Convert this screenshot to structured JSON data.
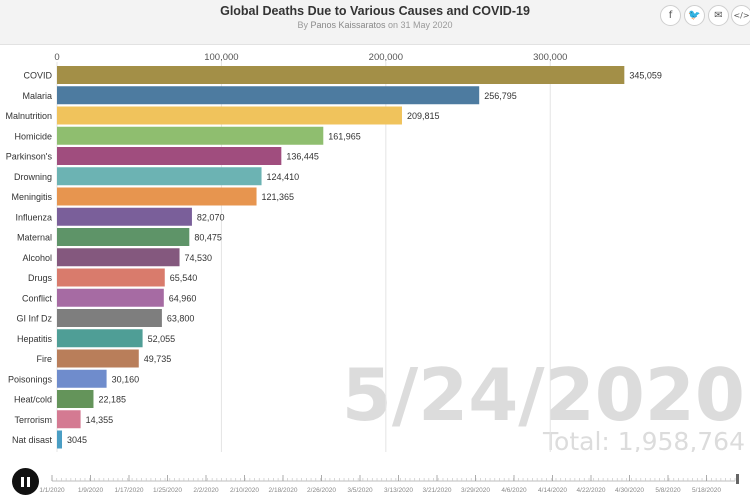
{
  "header": {
    "title": "Global Deaths Due to Various Causes and COVID-19",
    "by_prefix": "By ",
    "author": "Panos Kaissaratos",
    "date_text": " on 31 May 2020"
  },
  "share_icons": [
    {
      "name": "facebook-icon",
      "glyph": "f"
    },
    {
      "name": "twitter-icon",
      "glyph": "🐦"
    },
    {
      "name": "email-icon",
      "glyph": "✉"
    },
    {
      "name": "embed-icon",
      "glyph": "</>"
    }
  ],
  "chart_data": {
    "type": "bar",
    "orientation": "horizontal",
    "title": "Global Deaths Due to Various Causes and COVID-19",
    "xlim": [
      0,
      385000
    ],
    "x_ticks": [
      0,
      100000,
      200000,
      300000
    ],
    "x_tick_labels": [
      "0",
      "100,000",
      "200,000",
      "300,000"
    ],
    "grid": true,
    "categories": [
      "COVID",
      "Malaria",
      "Malnutrition",
      "Homicide",
      "Parkinson's",
      "Drowning",
      "Meningitis",
      "Influenza",
      "Maternal",
      "Alcohol",
      "Drugs",
      "Conflict",
      "GI Inf Dz",
      "Hepatitis",
      "Fire",
      "Poisonings",
      "Heat/cold",
      "Terrorism",
      "Nat disast"
    ],
    "values": [
      345059,
      256795,
      209815,
      161965,
      136445,
      124410,
      121365,
      82070,
      80475,
      74530,
      65540,
      64960,
      63800,
      52055,
      49735,
      30160,
      22185,
      14355,
      3045
    ],
    "value_labels": [
      "345,059",
      "256,795",
      "209,815",
      "161,965",
      "136,445",
      "124,410",
      "121,365",
      "82,070",
      "80,475",
      "74,530",
      "65,540",
      "64,960",
      "63,800",
      "52,055",
      "49,735",
      "30,160",
      "22,185",
      "14,355",
      "3045"
    ],
    "colors": [
      "#a38f47",
      "#4d7ba0",
      "#f0c35c",
      "#8fbe6f",
      "#a04d7e",
      "#6cb3b3",
      "#e7954f",
      "#7a5f9a",
      "#5e9468",
      "#84587e",
      "#d97b6c",
      "#a66ba3",
      "#7e7e7e",
      "#4f9e96",
      "#b97e5a",
      "#6f8ccc",
      "#64945a",
      "#d47a92",
      "#4a9ec4"
    ],
    "current_date": "5/24/2020",
    "total_label": "Total: 1,958,764"
  },
  "timeline": {
    "labels": [
      "1/1/2020",
      "1/9/2020",
      "1/17/2020",
      "1/25/2020",
      "2/2/2020",
      "2/10/2020",
      "2/18/2020",
      "2/26/2020",
      "3/5/2020",
      "3/13/2020",
      "3/21/2020",
      "3/29/2020",
      "4/6/2020",
      "4/14/2020",
      "4/22/2020",
      "4/30/2020",
      "5/8/2020",
      "5/18/2020"
    ],
    "current": "5/24/2020"
  }
}
